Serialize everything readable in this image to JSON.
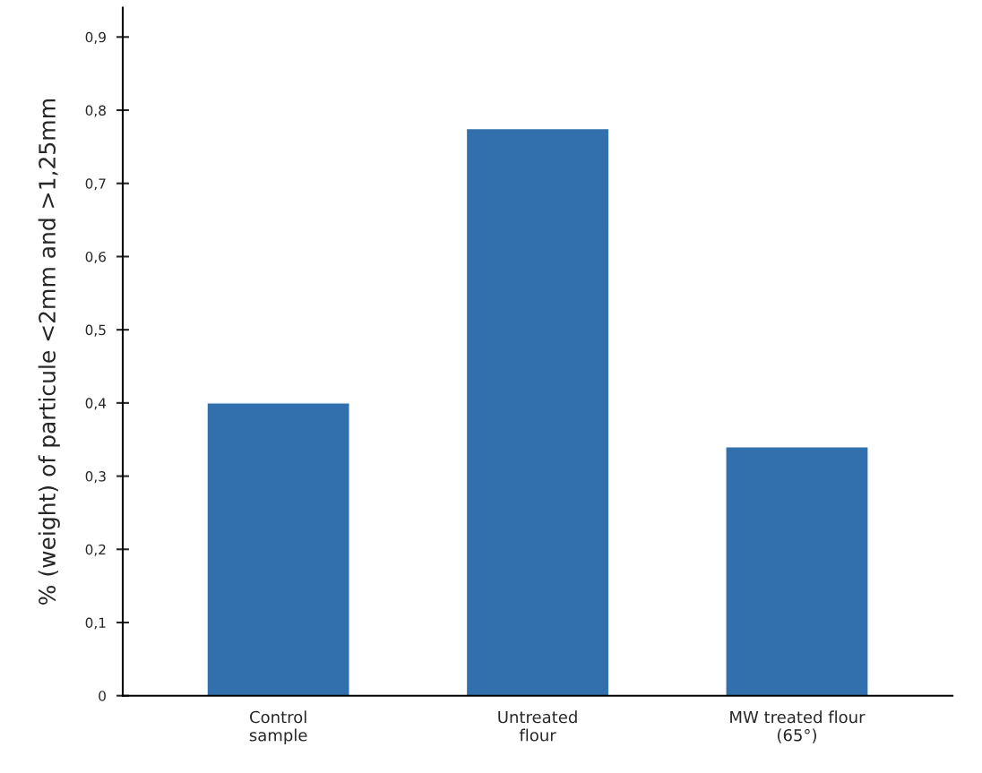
{
  "chart_data": {
    "type": "bar",
    "ylabel": "% (weight) of particule <2mm and >1,25mm",
    "categories": [
      "Control\nsample",
      "Untreated\nflour",
      "MW treated flour\n(65°)"
    ],
    "values": [
      0.4,
      0.775,
      0.34
    ],
    "color": "#3170ad",
    "ylim": [
      0,
      0.94
    ],
    "yticks": [
      0,
      {
        "value": 0.1,
        "label": "0,1"
      },
      {
        "value": 0.2,
        "label": "0,2"
      },
      {
        "value": 0.3,
        "label": "0,3"
      },
      {
        "value": 0.4,
        "label": "0,4"
      },
      {
        "value": 0.5,
        "label": "0,5"
      },
      {
        "value": 0.6,
        "label": "0,6"
      },
      {
        "value": 0.7,
        "label": "0,7"
      },
      {
        "value": 0.8,
        "label": "0,8"
      },
      {
        "value": 0.9,
        "label": "0,9"
      }
    ],
    "grid": false
  }
}
